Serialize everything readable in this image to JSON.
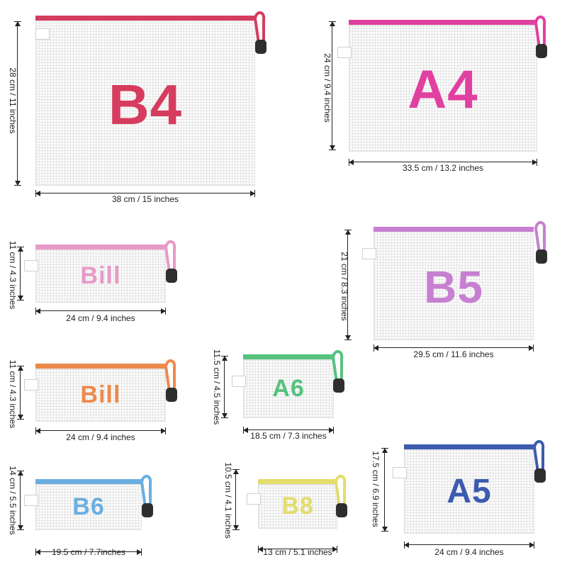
{
  "pouches": [
    {
      "code": "B4",
      "color": "#d63c5e",
      "width_label": "38 cm / 15 inches",
      "height_label": "28 cm / 11 inches"
    },
    {
      "code": "A4",
      "color": "#e040a0",
      "width_label": "33.5 cm / 13.2 inches",
      "height_label": "24 cm / 9.4 inches"
    },
    {
      "code": "Bill",
      "color": "#e79ac8",
      "width_label": "24 cm / 9.4 inches",
      "height_label": "11 cm / 4.3 inches"
    },
    {
      "code": "B5",
      "color": "#c77fd1",
      "width_label": "29.5 cm / 11.6 inches",
      "height_label": "21 cm / 8.3 inches"
    },
    {
      "code": "Bill",
      "color": "#ec8a4c",
      "width_label": "24 cm / 9.4 inches",
      "height_label": "11 cm / 4.3 inches"
    },
    {
      "code": "A6",
      "color": "#55c27e",
      "width_label": "18.5 cm / 7.3 inches",
      "height_label": "11.5 cm / 4.5 inches"
    },
    {
      "code": "B6",
      "color": "#6aaee0",
      "width_label": "19.5 cm / 7.7inches",
      "height_label": "14 cm / 5.5 inches"
    },
    {
      "code": "B8",
      "color": "#e3dd6a",
      "width_label": "13 cm / 5.1 inches",
      "height_label": "10.5 cm / 4.1 inches"
    },
    {
      "code": "A5",
      "color": "#3c5bb0",
      "width_label": "24 cm / 9.4 inches",
      "height_label": "17.5 cm / 6.9 inches"
    }
  ]
}
